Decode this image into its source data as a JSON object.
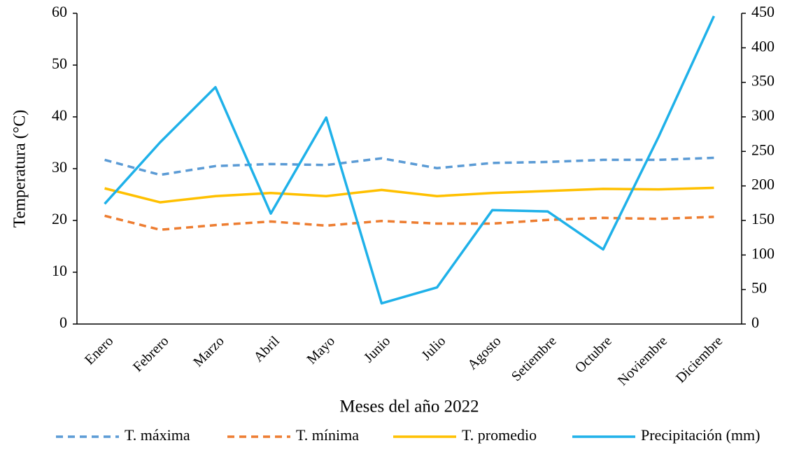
{
  "chart_data": {
    "type": "line",
    "xlabel": "Meses del año 2022",
    "ylabel": "Temperatura (°C)",
    "categories": [
      "Enero",
      "Febrero",
      "Marzo",
      "Abril",
      "Mayo",
      "Junio",
      "Julio",
      "Agosto",
      "Setiembre",
      "Octubre",
      "Noviembre",
      "Diciembre"
    ],
    "series": [
      {
        "name": "T. máxima",
        "color": "#5b9bd5",
        "dash": "dashed",
        "values": [
          31.7,
          28.8,
          30.5,
          30.9,
          30.7,
          32.0,
          30.1,
          31.1,
          31.3,
          31.7,
          31.7,
          32.1
        ]
      },
      {
        "name": "T. mínima",
        "color": "#ed7d31",
        "dash": "dashed",
        "values": [
          20.9,
          18.2,
          19.1,
          19.8,
          19.0,
          19.9,
          19.4,
          19.4,
          20.1,
          20.5,
          20.3,
          20.7
        ]
      },
      {
        "name": "T. promedio",
        "color": "#ffc000",
        "dash": "solid",
        "values": [
          26.2,
          23.5,
          24.7,
          25.3,
          24.7,
          25.9,
          24.7,
          25.3,
          25.7,
          26.1,
          26.0,
          26.3
        ]
      },
      {
        "name": "Precipitación (mm)",
        "color": "#1fb1e9",
        "dash": "solid",
        "axis": "y2",
        "values": [
          174,
          263,
          343,
          160,
          299,
          30,
          53,
          165,
          163,
          108,
          271,
          446
        ]
      }
    ],
    "ylim": [
      0,
      60
    ],
    "yticks": [
      0,
      10,
      20,
      30,
      40,
      50,
      60
    ],
    "y2lim": [
      0,
      450
    ],
    "y2ticks": [
      0,
      50,
      100,
      150,
      200,
      250,
      300,
      350,
      400,
      450
    ],
    "grid": false,
    "legend": "bottom"
  }
}
